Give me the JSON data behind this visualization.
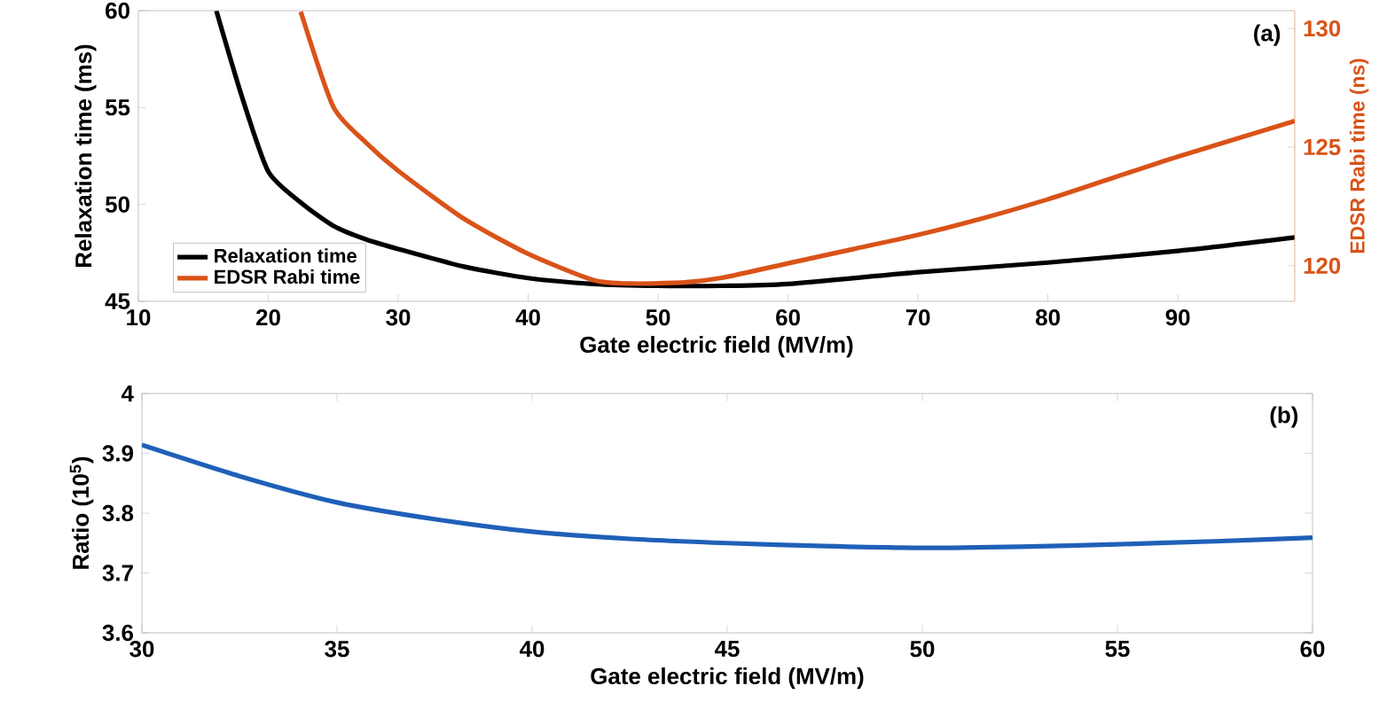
{
  "chart_data": [
    {
      "type": "line",
      "xlabel": "Gate electric field (MV/m)",
      "ylabel": "Relaxation time (ms)",
      "y2label": "EDSR Rabi time (ns)",
      "annotations": [
        "(a)"
      ],
      "xlim": [
        10,
        99
      ],
      "xticks": [
        10,
        20,
        30,
        40,
        50,
        60,
        70,
        80,
        90
      ],
      "ylim": [
        45,
        60
      ],
      "yticks": [
        45,
        50,
        55,
        60
      ],
      "y2lim": [
        118.5,
        130.75
      ],
      "y2ticks": [
        120,
        125,
        130
      ],
      "legend": "bottom left",
      "series": [
        {
          "name": "Relaxation time",
          "color": "#000000",
          "x": [
            16,
            18,
            20,
            22.5,
            25,
            27.5,
            30,
            35,
            40,
            45,
            50,
            55,
            60,
            70,
            80,
            90,
            99
          ],
          "values": [
            60,
            55.5,
            51.7,
            50.1,
            48.9,
            48.2,
            47.7,
            46.8,
            46.2,
            45.9,
            45.8,
            45.8,
            45.9,
            46.5,
            47.0,
            47.6,
            48.3
          ]
        },
        {
          "name": "EDSR Rabi time",
          "color": "#d95319",
          "axis": "y2",
          "x": [
            22.5,
            25,
            27.5,
            30,
            35,
            40,
            45,
            48,
            52,
            55,
            60,
            65,
            70,
            75,
            80,
            85,
            90,
            99
          ],
          "values": [
            130.7,
            126.7,
            125.2,
            124.0,
            122.0,
            120.5,
            119.4,
            119.25,
            119.3,
            119.5,
            120.1,
            120.7,
            121.3,
            122.0,
            122.8,
            123.7,
            124.6,
            126.1
          ]
        }
      ]
    },
    {
      "type": "line",
      "xlabel": "Gate electric field (MV/m)",
      "ylabel": "Ratio (10$^{5}$)",
      "annotations": [
        "(b)"
      ],
      "xlim": [
        30,
        60
      ],
      "xticks": [
        30,
        35,
        40,
        45,
        50,
        55,
        60
      ],
      "ylim": [
        3.6,
        4
      ],
      "yticks": [
        3.6,
        3.7,
        3.8,
        3.9,
        4
      ],
      "series": [
        {
          "color": "#1f60b8",
          "x": [
            30,
            32.5,
            35,
            37.5,
            40,
            42.5,
            45,
            47.5,
            50,
            52.5,
            55,
            57.5,
            60
          ],
          "values": [
            3.914,
            3.862,
            3.818,
            3.79,
            3.769,
            3.757,
            3.75,
            3.745,
            3.742,
            3.744,
            3.748,
            3.753,
            3.759
          ]
        }
      ]
    }
  ]
}
